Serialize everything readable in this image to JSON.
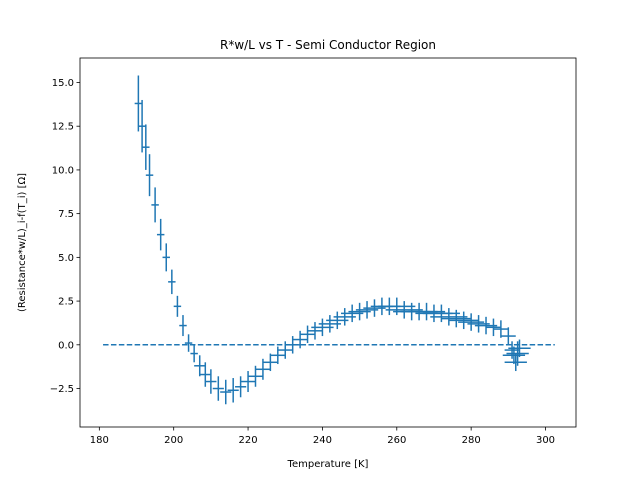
{
  "chart_data": {
    "type": "scatter",
    "title": "R*w/L vs T - Semi Conductor Region",
    "xlabel": "Temperature [K]",
    "ylabel": "(Resistance*w/L)_i-f(T_i) [Ω]",
    "xlim": [
      174.8,
      308.2
    ],
    "ylim": [
      -4.7,
      16.4
    ],
    "xticks": [
      180,
      200,
      220,
      240,
      260,
      280,
      300
    ],
    "yticks": [
      -2.5,
      0.0,
      2.5,
      5.0,
      7.5,
      10.0,
      12.5,
      15.0
    ],
    "ytick_labels": [
      "−2.5",
      "0.0",
      "2.5",
      "5.0",
      "7.5",
      "10.0",
      "12.5",
      "15.0"
    ],
    "grid": false,
    "colors": {
      "series": "#1f77b4"
    },
    "series": [
      {
        "style": "errorbar",
        "x": [
          190.5,
          191.5,
          192.5,
          193.5,
          195.0,
          196.5,
          198.0,
          199.5,
          201.0,
          202.5,
          204.0,
          205.5,
          207.0,
          208.5,
          210.0,
          212.0,
          214.0,
          216.0,
          218.0,
          220.0,
          222.0,
          224.0,
          226.0,
          228.0,
          230.0,
          232.0,
          234.0,
          236.0,
          238.0,
          240.0,
          242.0,
          244.0,
          246.0,
          248.0,
          250.0,
          252.0,
          254.0,
          256.0,
          258.0,
          260.0,
          262.0,
          264.0,
          266.0,
          268.0,
          270.0,
          272.0,
          274.0,
          276.0,
          278.0,
          280.0,
          282.0,
          284.0,
          286.0,
          288.0,
          290.0,
          291.0,
          291.5,
          292.0,
          292.5,
          293.0
        ],
        "y": [
          13.8,
          12.5,
          11.3,
          9.7,
          8.0,
          6.3,
          5.0,
          3.6,
          2.2,
          1.1,
          0.1,
          -0.5,
          -1.2,
          -1.7,
          -2.1,
          -2.5,
          -2.7,
          -2.6,
          -2.4,
          -2.1,
          -1.8,
          -1.4,
          -1.0,
          -0.6,
          -0.3,
          0.0,
          0.3,
          0.6,
          0.8,
          1.0,
          1.2,
          1.4,
          1.6,
          1.8,
          1.9,
          2.0,
          2.1,
          2.2,
          2.2,
          2.2,
          2.0,
          1.9,
          1.9,
          1.9,
          1.8,
          1.8,
          1.6,
          1.5,
          1.4,
          1.3,
          1.2,
          1.1,
          1.0,
          0.9,
          0.5,
          -0.3,
          -0.6,
          -1.0,
          -0.5,
          -0.2
        ],
        "xerr": [
          1.0,
          1.0,
          1.0,
          1.0,
          1.0,
          1.0,
          1.0,
          1.0,
          1.0,
          1.0,
          1.0,
          1.0,
          1.5,
          1.5,
          1.5,
          1.5,
          1.5,
          1.5,
          1.5,
          2.0,
          2.0,
          2.0,
          2.0,
          2.0,
          2.0,
          2.0,
          2.0,
          2.0,
          2.0,
          3.0,
          3.0,
          3.0,
          3.0,
          3.0,
          3.0,
          3.0,
          3.0,
          3.0,
          3.0,
          5.0,
          5.0,
          5.0,
          5.0,
          5.0,
          5.0,
          5.0,
          5.0,
          4.0,
          4.0,
          3.5,
          3.0,
          3.0,
          2.0,
          2.0,
          2.0,
          2.0,
          3.0,
          3.0,
          3.0,
          3.0
        ],
        "yerr": [
          1.6,
          1.5,
          1.3,
          1.2,
          1.0,
          0.9,
          0.8,
          0.7,
          0.6,
          0.6,
          0.5,
          0.5,
          0.6,
          0.7,
          0.7,
          0.7,
          0.7,
          0.7,
          0.6,
          0.6,
          0.6,
          0.6,
          0.5,
          0.5,
          0.5,
          0.5,
          0.5,
          0.5,
          0.5,
          0.5,
          0.5,
          0.5,
          0.5,
          0.5,
          0.5,
          0.5,
          0.5,
          0.5,
          0.5,
          0.5,
          0.5,
          0.5,
          0.5,
          0.5,
          0.5,
          0.5,
          0.5,
          0.5,
          0.5,
          0.5,
          0.5,
          0.5,
          0.5,
          0.5,
          0.5,
          0.5,
          0.5,
          0.5,
          0.7,
          0.5
        ]
      },
      {
        "style": "dashed-line",
        "x": [
          181,
          302.5
        ],
        "y": [
          0.0,
          0.0
        ]
      }
    ]
  }
}
